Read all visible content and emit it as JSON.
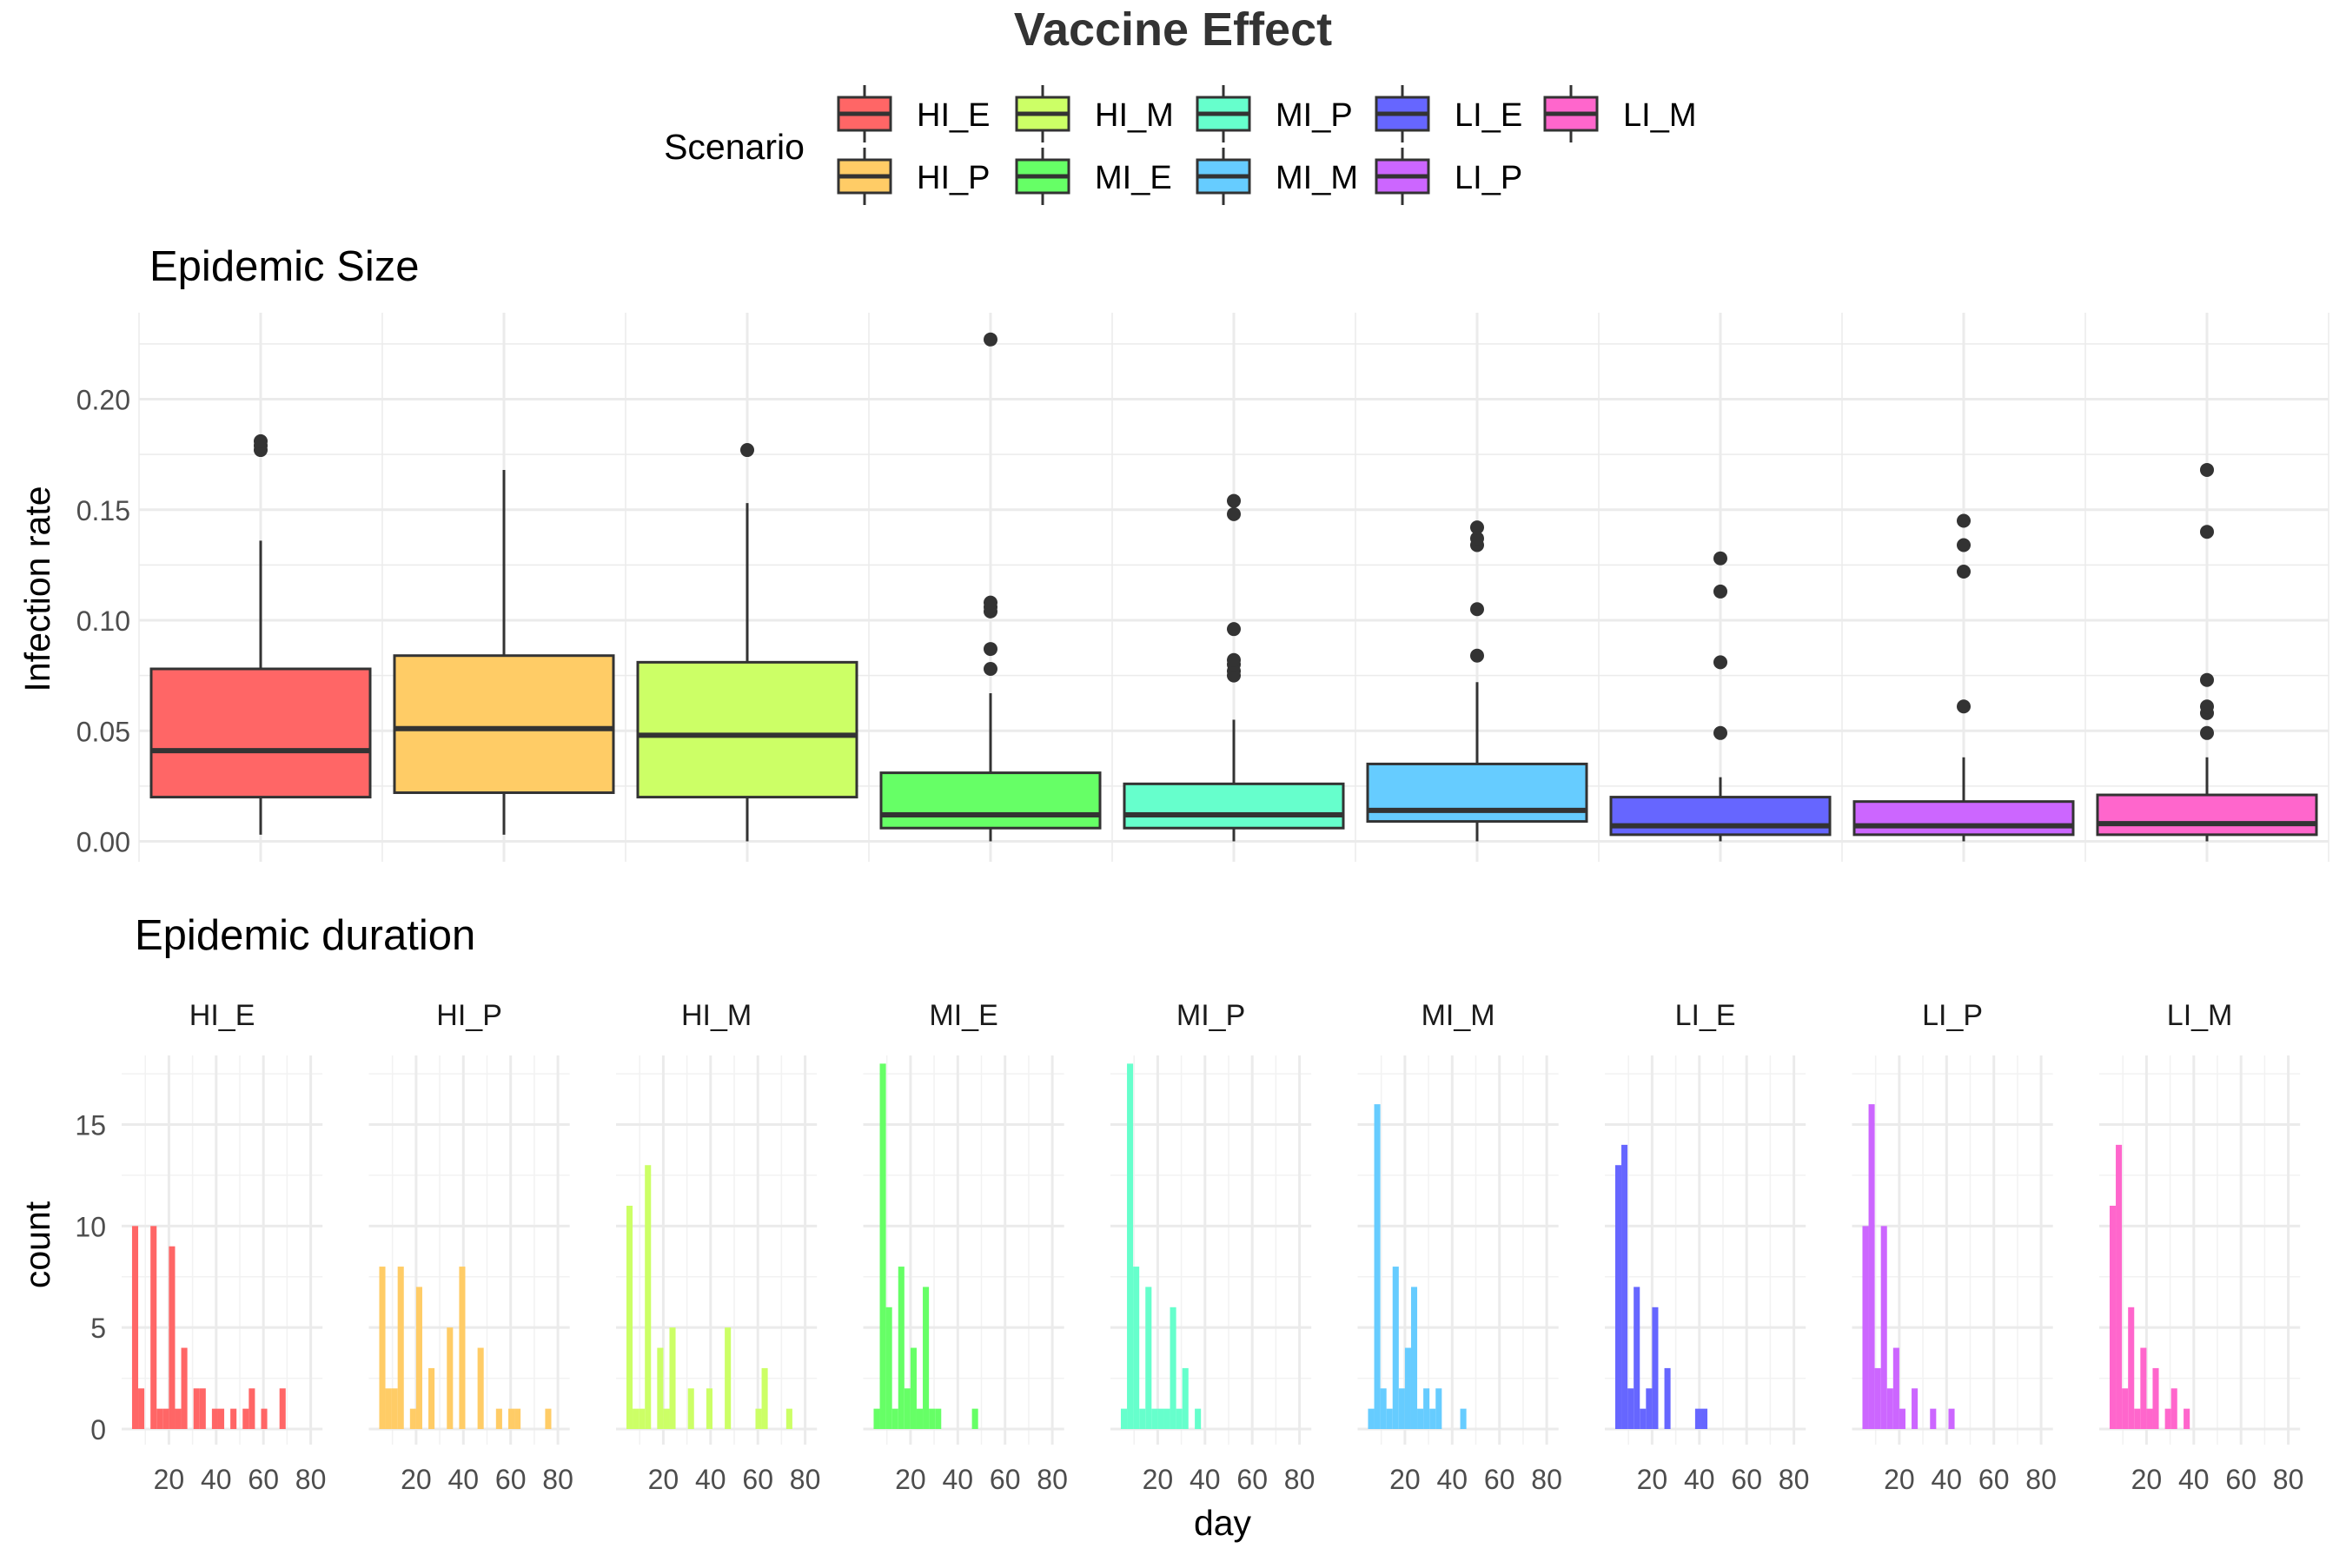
{
  "title": "Vaccine Effect",
  "legend": {
    "title": "Scenario",
    "entries": [
      {
        "name": "HI_E",
        "color": "#FF6666"
      },
      {
        "name": "HI_P",
        "color": "#FFCC66"
      },
      {
        "name": "HI_M",
        "color": "#CCFF66"
      },
      {
        "name": "MI_E",
        "color": "#66FF66"
      },
      {
        "name": "MI_P",
        "color": "#66FFCC"
      },
      {
        "name": "MI_M",
        "color": "#66CCFF"
      },
      {
        "name": "LI_E",
        "color": "#6666FF"
      },
      {
        "name": "LI_P",
        "color": "#CC66FF"
      },
      {
        "name": "LI_M",
        "color": "#FF66CC"
      }
    ]
  },
  "chart_data": [
    {
      "type": "box",
      "title": "Epidemic Size",
      "xlabel": "",
      "ylabel": "Infection rate",
      "ylim": [
        0,
        0.23
      ],
      "yticks": [
        "0.00",
        "0.05",
        "0.10",
        "0.15",
        "0.20"
      ],
      "grid": true,
      "categories": [
        "HI_E",
        "HI_P",
        "HI_M",
        "MI_E",
        "MI_P",
        "MI_M",
        "LI_E",
        "LI_P",
        "LI_M"
      ],
      "boxes": [
        {
          "name": "HI_E",
          "min": 0.003,
          "q1": 0.02,
          "median": 0.041,
          "q3": 0.078,
          "max": 0.136,
          "outliers": [
            0.177,
            0.179,
            0.181
          ]
        },
        {
          "name": "HI_P",
          "min": 0.003,
          "q1": 0.022,
          "median": 0.051,
          "q3": 0.084,
          "max": 0.168,
          "outliers": []
        },
        {
          "name": "HI_M",
          "min": 0.0,
          "q1": 0.02,
          "median": 0.048,
          "q3": 0.081,
          "max": 0.153,
          "outliers": [
            0.177
          ]
        },
        {
          "name": "MI_E",
          "min": 0.0,
          "q1": 0.006,
          "median": 0.012,
          "q3": 0.031,
          "max": 0.067,
          "outliers": [
            0.078,
            0.087,
            0.104,
            0.106,
            0.108,
            0.227
          ]
        },
        {
          "name": "MI_P",
          "min": 0.0,
          "q1": 0.006,
          "median": 0.012,
          "q3": 0.026,
          "max": 0.055,
          "outliers": [
            0.075,
            0.077,
            0.08,
            0.082,
            0.096,
            0.148,
            0.154
          ]
        },
        {
          "name": "MI_M",
          "min": 0.0,
          "q1": 0.009,
          "median": 0.014,
          "q3": 0.035,
          "max": 0.072,
          "outliers": [
            0.084,
            0.105,
            0.134,
            0.137,
            0.142
          ]
        },
        {
          "name": "LI_E",
          "min": 0.0,
          "q1": 0.003,
          "median": 0.007,
          "q3": 0.02,
          "max": 0.029,
          "outliers": [
            0.049,
            0.081,
            0.113,
            0.128
          ]
        },
        {
          "name": "LI_P",
          "min": 0.0,
          "q1": 0.003,
          "median": 0.007,
          "q3": 0.018,
          "max": 0.038,
          "outliers": [
            0.061,
            0.122,
            0.134,
            0.145
          ]
        },
        {
          "name": "LI_M",
          "min": 0.0,
          "q1": 0.003,
          "median": 0.008,
          "q3": 0.021,
          "max": 0.038,
          "outliers": [
            0.049,
            0.058,
            0.061,
            0.073,
            0.14,
            0.168
          ]
        }
      ]
    },
    {
      "type": "histogram",
      "title": "Epidemic duration",
      "xlabel": "day",
      "ylabel": "count",
      "xlim": [
        0,
        85
      ],
      "ylim": [
        0,
        18.6
      ],
      "xticks": [
        20,
        40,
        60,
        80
      ],
      "yticks": [
        0,
        5,
        10,
        15
      ],
      "binwidth": 2.6,
      "grid": true,
      "panels": [
        {
          "name": "HI_E",
          "bins": [
            {
              "x": 5.7,
              "count": 10
            },
            {
              "x": 8.3,
              "count": 2
            },
            {
              "x": 13.5,
              "count": 10
            },
            {
              "x": 16.1,
              "count": 1
            },
            {
              "x": 18.7,
              "count": 1
            },
            {
              "x": 21.3,
              "count": 9
            },
            {
              "x": 23.9,
              "count": 1
            },
            {
              "x": 26.5,
              "count": 4
            },
            {
              "x": 31.7,
              "count": 2
            },
            {
              "x": 34.3,
              "count": 2
            },
            {
              "x": 39.5,
              "count": 1
            },
            {
              "x": 42.1,
              "count": 1
            },
            {
              "x": 47.3,
              "count": 1
            },
            {
              "x": 52.5,
              "count": 1
            },
            {
              "x": 55.1,
              "count": 2
            },
            {
              "x": 60.3,
              "count": 1
            },
            {
              "x": 68.1,
              "count": 2
            }
          ]
        },
        {
          "name": "HI_P",
          "bins": [
            {
              "x": 5.7,
              "count": 8
            },
            {
              "x": 8.3,
              "count": 2
            },
            {
              "x": 10.9,
              "count": 2
            },
            {
              "x": 13.5,
              "count": 8
            },
            {
              "x": 18.7,
              "count": 1
            },
            {
              "x": 21.3,
              "count": 7
            },
            {
              "x": 26.5,
              "count": 3
            },
            {
              "x": 34.3,
              "count": 5
            },
            {
              "x": 39.5,
              "count": 8
            },
            {
              "x": 47.3,
              "count": 4
            },
            {
              "x": 55.1,
              "count": 1
            },
            {
              "x": 60.3,
              "count": 1
            },
            {
              "x": 62.9,
              "count": 1
            },
            {
              "x": 75.9,
              "count": 1
            }
          ]
        },
        {
          "name": "HI_M",
          "bins": [
            {
              "x": 5.7,
              "count": 11
            },
            {
              "x": 8.3,
              "count": 1
            },
            {
              "x": 10.9,
              "count": 1
            },
            {
              "x": 13.5,
              "count": 13
            },
            {
              "x": 18.7,
              "count": 4
            },
            {
              "x": 21.3,
              "count": 1
            },
            {
              "x": 23.9,
              "count": 5
            },
            {
              "x": 31.7,
              "count": 2
            },
            {
              "x": 39.5,
              "count": 2
            },
            {
              "x": 47.3,
              "count": 5
            },
            {
              "x": 60.3,
              "count": 1
            },
            {
              "x": 62.9,
              "count": 3
            },
            {
              "x": 73.3,
              "count": 1
            }
          ]
        },
        {
          "name": "MI_E",
          "bins": [
            {
              "x": 5.7,
              "count": 1
            },
            {
              "x": 8.3,
              "count": 18
            },
            {
              "x": 10.9,
              "count": 6
            },
            {
              "x": 13.5,
              "count": 1
            },
            {
              "x": 16.1,
              "count": 8
            },
            {
              "x": 18.7,
              "count": 2
            },
            {
              "x": 21.3,
              "count": 4
            },
            {
              "x": 23.9,
              "count": 1
            },
            {
              "x": 26.5,
              "count": 7
            },
            {
              "x": 29.1,
              "count": 1
            },
            {
              "x": 31.7,
              "count": 1
            },
            {
              "x": 47.3,
              "count": 1
            }
          ]
        },
        {
          "name": "MI_P",
          "bins": [
            {
              "x": 5.7,
              "count": 1
            },
            {
              "x": 8.3,
              "count": 18
            },
            {
              "x": 10.9,
              "count": 8
            },
            {
              "x": 13.5,
              "count": 1
            },
            {
              "x": 16.1,
              "count": 7
            },
            {
              "x": 18.7,
              "count": 1
            },
            {
              "x": 21.3,
              "count": 1
            },
            {
              "x": 23.9,
              "count": 1
            },
            {
              "x": 26.5,
              "count": 6
            },
            {
              "x": 29.1,
              "count": 1
            },
            {
              "x": 31.7,
              "count": 3
            },
            {
              "x": 37,
              "count": 1
            }
          ]
        },
        {
          "name": "MI_M",
          "bins": [
            {
              "x": 5.7,
              "count": 1
            },
            {
              "x": 8.3,
              "count": 16
            },
            {
              "x": 10.9,
              "count": 2
            },
            {
              "x": 13.5,
              "count": 1
            },
            {
              "x": 16.1,
              "count": 8
            },
            {
              "x": 18.7,
              "count": 2
            },
            {
              "x": 21.3,
              "count": 4
            },
            {
              "x": 23.9,
              "count": 7
            },
            {
              "x": 26.5,
              "count": 1
            },
            {
              "x": 29.1,
              "count": 2
            },
            {
              "x": 31.7,
              "count": 1
            },
            {
              "x": 34.3,
              "count": 2
            },
            {
              "x": 44.7,
              "count": 1
            }
          ]
        },
        {
          "name": "LI_E",
          "bins": [
            {
              "x": 5.7,
              "count": 13
            },
            {
              "x": 8.3,
              "count": 14
            },
            {
              "x": 10.9,
              "count": 2
            },
            {
              "x": 13.5,
              "count": 7
            },
            {
              "x": 16.1,
              "count": 1
            },
            {
              "x": 18.7,
              "count": 2
            },
            {
              "x": 21.3,
              "count": 6
            },
            {
              "x": 26.5,
              "count": 3
            },
            {
              "x": 39.5,
              "count": 1
            },
            {
              "x": 42.1,
              "count": 1
            }
          ]
        },
        {
          "name": "LI_P",
          "bins": [
            {
              "x": 5.7,
              "count": 10
            },
            {
              "x": 8.3,
              "count": 16
            },
            {
              "x": 10.9,
              "count": 3
            },
            {
              "x": 13.5,
              "count": 10
            },
            {
              "x": 16.1,
              "count": 2
            },
            {
              "x": 18.7,
              "count": 4
            },
            {
              "x": 21.3,
              "count": 1
            },
            {
              "x": 26.5,
              "count": 2
            },
            {
              "x": 34.3,
              "count": 1
            },
            {
              "x": 42.1,
              "count": 1
            }
          ]
        },
        {
          "name": "LI_M",
          "bins": [
            {
              "x": 5.7,
              "count": 11
            },
            {
              "x": 8.3,
              "count": 14
            },
            {
              "x": 10.9,
              "count": 2
            },
            {
              "x": 13.5,
              "count": 6
            },
            {
              "x": 16.1,
              "count": 1
            },
            {
              "x": 18.7,
              "count": 4
            },
            {
              "x": 21.3,
              "count": 1
            },
            {
              "x": 23.9,
              "count": 3
            },
            {
              "x": 29.1,
              "count": 1
            },
            {
              "x": 31.7,
              "count": 2
            },
            {
              "x": 37,
              "count": 1
            }
          ]
        }
      ]
    }
  ]
}
